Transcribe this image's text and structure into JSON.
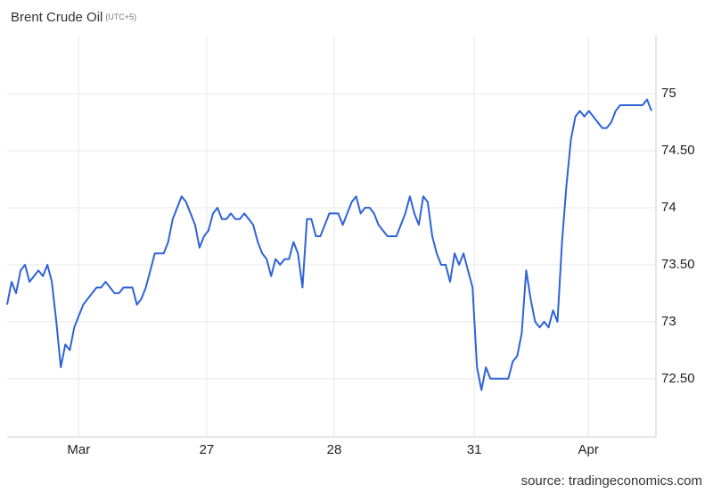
{
  "chart_data": {
    "type": "line",
    "title": "Brent Crude Oil",
    "subtitle": "(UTC+5)",
    "source": "source: tradingeconomics.com",
    "series": [
      {
        "name": "Brent Crude Oil",
        "color": "#2e63d8",
        "values": [
          73.15,
          73.35,
          73.25,
          73.45,
          73.5,
          73.35,
          73.4,
          73.45,
          73.4,
          73.5,
          73.35,
          73.0,
          72.6,
          72.8,
          72.75,
          72.95,
          73.05,
          73.15,
          73.2,
          73.25,
          73.3,
          73.3,
          73.35,
          73.3,
          73.25,
          73.25,
          73.3,
          73.3,
          73.3,
          73.15,
          73.2,
          73.3,
          73.45,
          73.6,
          73.6,
          73.6,
          73.7,
          73.9,
          74.0,
          74.1,
          74.05,
          73.95,
          73.85,
          73.65,
          73.75,
          73.8,
          73.95,
          74.0,
          73.9,
          73.9,
          73.95,
          73.9,
          73.9,
          73.95,
          73.9,
          73.85,
          73.7,
          73.6,
          73.55,
          73.4,
          73.55,
          73.5,
          73.55,
          73.55,
          73.7,
          73.6,
          73.3,
          73.9,
          73.9,
          73.75,
          73.75,
          73.85,
          73.95,
          73.95,
          73.95,
          73.85,
          73.95,
          74.05,
          74.1,
          73.95,
          74.0,
          74.0,
          73.95,
          73.85,
          73.8,
          73.75,
          73.75,
          73.75,
          73.85,
          73.95,
          74.1,
          73.95,
          73.85,
          74.1,
          74.05,
          73.75,
          73.6,
          73.5,
          73.5,
          73.35,
          73.6,
          73.5,
          73.6,
          73.45,
          73.3,
          72.6,
          72.4,
          72.6,
          72.5,
          72.5,
          72.5,
          72.5,
          72.5,
          72.65,
          72.7,
          72.9,
          73.45,
          73.2,
          73.0,
          72.95,
          73.0,
          72.95,
          73.1,
          73.0,
          73.7,
          74.2,
          74.6,
          74.8,
          74.85,
          74.8,
          74.85,
          74.8,
          74.75,
          74.7,
          74.7,
          74.75,
          74.85,
          74.9,
          74.9,
          74.9,
          74.9,
          74.9,
          74.9,
          74.95,
          74.85
        ]
      }
    ],
    "xlim": [
      0,
      145
    ],
    "xticks": [
      {
        "value": 16,
        "label": "Mar"
      },
      {
        "value": 44.6,
        "label": "27"
      },
      {
        "value": 73.1,
        "label": "28"
      },
      {
        "value": 104.4,
        "label": "31"
      },
      {
        "value": 129.9,
        "label": "Apr"
      }
    ],
    "ylim": [
      71.99,
      75.51
    ],
    "yticks": [
      {
        "value": 72.5,
        "label": "72.50"
      },
      73,
      {
        "value": 73.5,
        "label": "73.50"
      },
      74,
      {
        "value": 74.5,
        "label": "74.50"
      },
      75
    ],
    "grid": true
  }
}
